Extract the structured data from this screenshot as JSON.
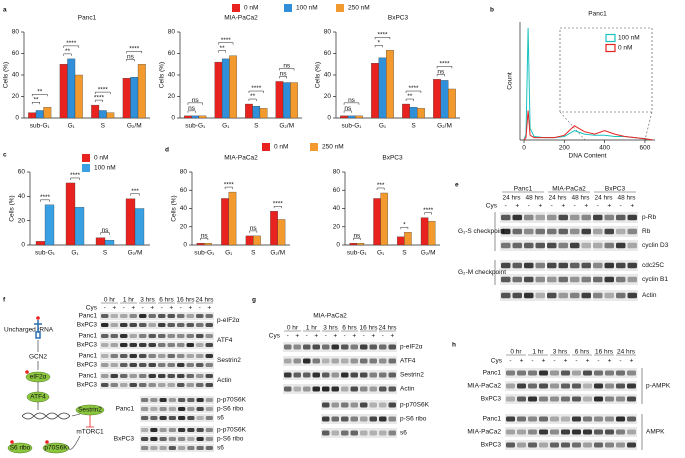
{
  "panel_labels": [
    "a",
    "b",
    "c",
    "d",
    "e",
    "f",
    "g",
    "h"
  ],
  "chart_data": [
    {
      "type": "bar",
      "title": "Panc1",
      "title_color": "#e8231f",
      "y_label": "Cells (%)",
      "categories": [
        "sub-G₁",
        "G₁",
        "S",
        "G₂/M"
      ],
      "series": [
        {
          "name": "0 nM",
          "color": "#e8231f",
          "values": [
            5,
            50,
            12,
            37
          ]
        },
        {
          "name": "100 nM",
          "color": "#2f8fd8",
          "values": [
            7,
            55,
            7,
            38
          ]
        },
        {
          "name": "250 nM",
          "color": "#f29a2e",
          "values": [
            10,
            40,
            5,
            50
          ]
        }
      ],
      "legend": "top",
      "ylim": [
        0,
        80
      ],
      "yticks": [
        0,
        20,
        40,
        60,
        80
      ],
      "annotations": [
        "**",
        "**",
        "**",
        "****",
        "****",
        "****",
        "ns",
        "****"
      ]
    },
    {
      "type": "bar",
      "title": "MIA-PaCa2",
      "title_color": "#000000",
      "y_label": "Cells (%)",
      "categories": [
        "sub-G₁",
        "G₁",
        "S",
        "G₂/M"
      ],
      "series": [
        {
          "color": "#e8231f",
          "values": [
            2,
            52,
            13,
            34
          ]
        },
        {
          "color": "#2f8fd8",
          "values": [
            2,
            55,
            11,
            33
          ]
        },
        {
          "color": "#f29a2e",
          "values": [
            2,
            58,
            9,
            33
          ]
        }
      ],
      "ylim": [
        0,
        80
      ],
      "yticks": [
        0,
        20,
        40,
        60,
        80
      ],
      "annotations": [
        "ns",
        "ns",
        "**",
        "****",
        "**",
        "****",
        "ns",
        "ns"
      ]
    },
    {
      "type": "bar",
      "title": "BxPC3",
      "title_color": "#2b2bd6",
      "y_label": "Cells (%)",
      "categories": [
        "sub-G₁",
        "G₁",
        "S",
        "G₂/M"
      ],
      "series": [
        {
          "color": "#e8231f",
          "values": [
            2,
            51,
            13,
            36
          ]
        },
        {
          "color": "#2f8fd8",
          "values": [
            2,
            56,
            10,
            35
          ]
        },
        {
          "color": "#f29a2e",
          "values": [
            2,
            63,
            9,
            27
          ]
        }
      ],
      "ylim": [
        0,
        80
      ],
      "yticks": [
        0,
        20,
        40,
        60,
        80
      ],
      "annotations": [
        "ns",
        "ns",
        "*",
        "****",
        "**",
        "****",
        "ns",
        "****"
      ]
    },
    {
      "type": "line",
      "title": "Panc1",
      "title_color": "#e8231f",
      "x_label": "DNA Content",
      "y_label": "Count",
      "x": [
        0,
        10,
        20,
        30,
        50,
        100,
        150,
        200,
        250,
        300,
        350,
        400,
        450,
        500,
        550,
        600,
        640
      ],
      "series": [
        {
          "name": "100 nM",
          "color": "#19c2c0",
          "values": [
            0,
            5,
            95,
            10,
            3,
            2,
            2,
            3,
            8,
            5,
            4,
            4,
            3,
            3,
            2,
            1,
            0
          ]
        },
        {
          "name": "0 nM",
          "color": "#e8231f",
          "values": [
            0,
            2,
            25,
            4,
            2,
            2,
            2,
            4,
            12,
            7,
            5,
            8,
            5,
            3,
            2,
            1,
            0
          ]
        }
      ],
      "legend": "upper right",
      "xlim": [
        -20,
        650
      ],
      "ylim": [
        0,
        100
      ],
      "xticks": [
        0,
        200,
        400,
        600
      ]
    },
    {
      "type": "bar",
      "y_label": "Cells (%)",
      "categories": [
        "sub-G₁",
        "G₁",
        "S",
        "G₂/M"
      ],
      "series": [
        {
          "name": "0 nM",
          "color": "#e8231f",
          "values": [
            3,
            51,
            6,
            38
          ]
        },
        {
          "name": "100 nM",
          "color": "#3aa0e4",
          "values": [
            33,
            31,
            4,
            30
          ]
        }
      ],
      "legend": "top",
      "ylim": [
        0,
        60
      ],
      "yticks": [
        0,
        20,
        40,
        60
      ],
      "annotations": [
        "****",
        "****",
        "ns",
        "***"
      ]
    },
    {
      "type": "bar",
      "title": "MIA-PaCa2",
      "title_color": "#000000",
      "y_label": "Cells (%)",
      "categories": [
        "sub-G₁",
        "G₁",
        "S",
        "G₂/M"
      ],
      "series": [
        {
          "name": "0 nM",
          "color": "#e8231f",
          "values": [
            2,
            51,
            10,
            37
          ]
        },
        {
          "name": "250 nM",
          "color": "#f29a2e",
          "values": [
            2,
            58,
            10,
            28
          ]
        }
      ],
      "legend": "top",
      "ylim": [
        0,
        80
      ],
      "yticks": [
        0,
        20,
        40,
        60,
        80
      ],
      "annotations": [
        "ns",
        "****",
        "ns",
        "****"
      ]
    },
    {
      "type": "bar",
      "title": "BxPC3",
      "title_color": "#2b2bd6",
      "categories": [
        "sub-G₁",
        "G₁",
        "S",
        "G₂/M"
      ],
      "series": [
        {
          "color": "#e8231f",
          "values": [
            2,
            51,
            9,
            30
          ]
        },
        {
          "color": "#f29a2e",
          "values": [
            2,
            57,
            14,
            26
          ]
        }
      ],
      "ylim": [
        0,
        80
      ],
      "yticks": [
        0,
        20,
        40,
        60,
        80
      ],
      "annotations": [
        "ns",
        "***",
        "*",
        "****"
      ]
    }
  ],
  "blots": {
    "e": {
      "groups": [
        {
          "name": "Panc1",
          "color": "#e8231f"
        },
        {
          "name": "MIA-PaCa2",
          "color": "#000000"
        },
        {
          "name": "BxPC3",
          "color": "#2b2bd6"
        }
      ],
      "times": [
        "24 hrs",
        "48 hrs"
      ],
      "treatment": "Cys",
      "doses": [
        "-",
        "+"
      ],
      "proteins": [
        "p-Rb",
        "Rb",
        "cyclin D3",
        "cdc25C",
        "cyclin B1",
        "Actin"
      ],
      "checkpoints": [
        "G₁-S checkpoint",
        "G₂-M checkpoint"
      ]
    },
    "f": {
      "times": [
        "0 hr",
        "1 hr",
        "3 hrs",
        "6 hrs",
        "16 hrs",
        "24 hrs"
      ],
      "treatment": "Cys",
      "doses": [
        "-",
        "+"
      ],
      "cells": [
        {
          "name": "Panc1",
          "color": "#e8231f"
        },
        {
          "name": "BxPC3",
          "color": "#2b2bd6"
        }
      ],
      "proteins": [
        "p-eIF2α",
        "ATF4",
        "Sestrin2",
        "Actin"
      ],
      "mtor_proteins": [
        "p-p70S6K",
        "p-S6 ribo",
        "s6"
      ]
    },
    "g": {
      "title": "MIA-PaCa2",
      "times": [
        "0 hr",
        "1 hr",
        "3 hrs",
        "6 hrs",
        "16 hrs",
        "24 hrs"
      ],
      "treatment": "Cys",
      "doses": [
        "-",
        "+"
      ],
      "proteins": [
        "p-eIF2α",
        "ATF4",
        "Sestrin2",
        "Actin",
        "p-p70S6K",
        "p-S6 ribo",
        "s6"
      ]
    },
    "h": {
      "times": [
        "0 hr",
        "1 hr",
        "3 hrs",
        "6 hrs",
        "16 hrs",
        "24 hrs"
      ],
      "treatment": "Cys",
      "doses": [
        "-",
        "+"
      ],
      "cells": [
        {
          "name": "Panc1",
          "color": "#e8231f"
        },
        {
          "name": "MIA-PaCa2",
          "color": "#000000"
        },
        {
          "name": "BxPC3",
          "color": "#2b2bd6"
        }
      ],
      "proteins": [
        "p-AMPK",
        "AMPK"
      ]
    }
  },
  "diagram": {
    "trna": "Uncharged tRNA",
    "kinase": "GCN2",
    "nodes": [
      "eIF2α",
      "ATF4",
      "Sestrin2",
      "mTORC1",
      "S6 ribo",
      "p70S6K"
    ]
  }
}
